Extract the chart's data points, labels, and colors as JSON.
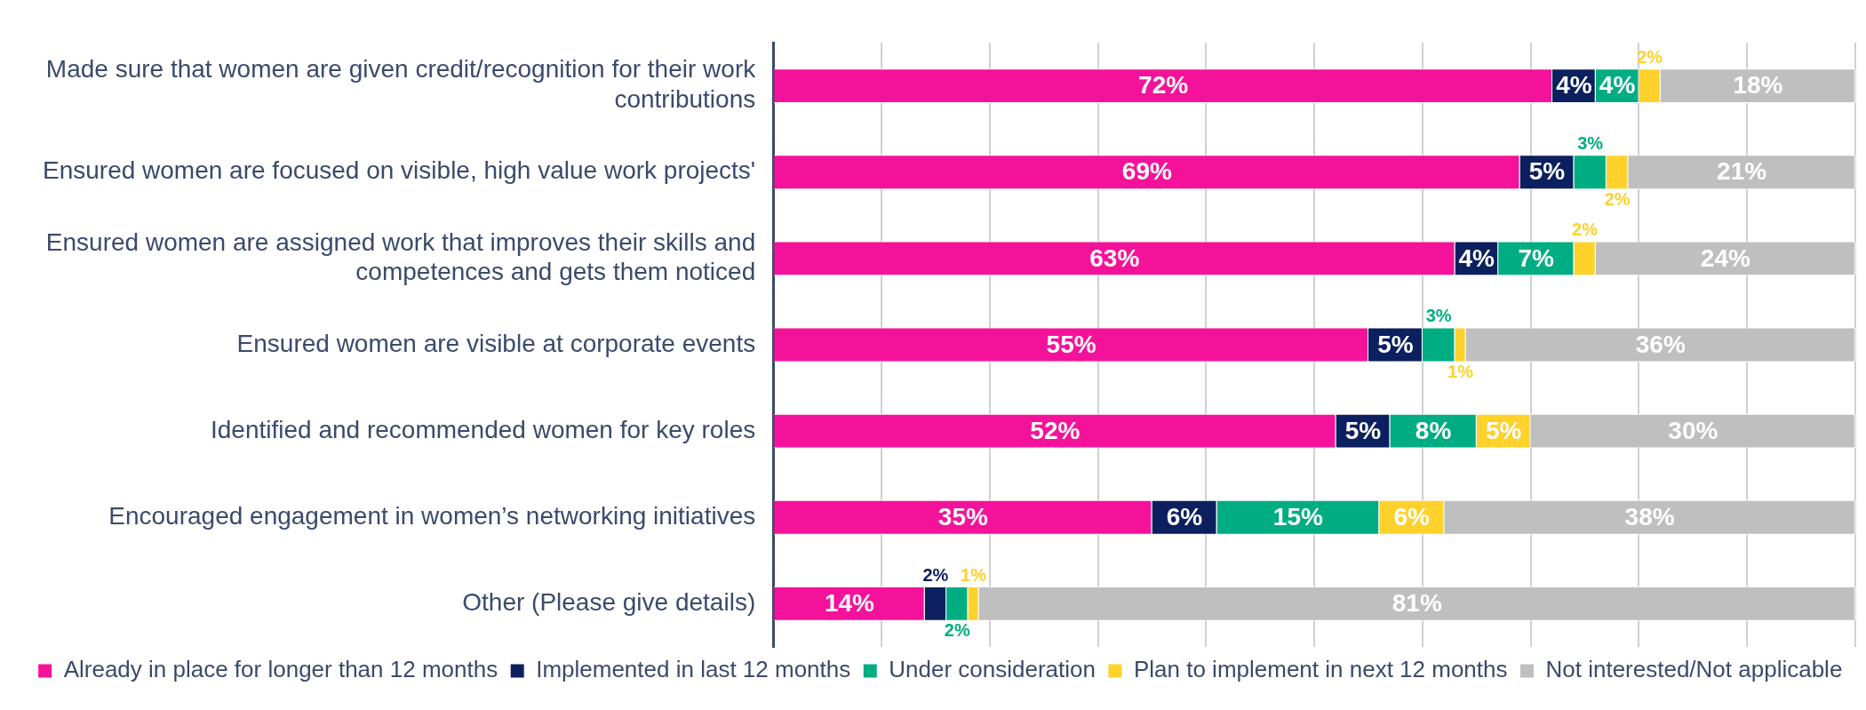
{
  "chart_data": {
    "type": "bar",
    "orientation": "horizontal",
    "stacked": true,
    "grid": "x",
    "legend": "bottom",
    "tick_labels": "y",
    "categories": [
      "Made sure that women are given credit/recognition for their work contributions",
      "Ensured women are focused on visible, high value work projects'",
      "Ensured women are assigned work that improves their skills and competences and gets them noticed",
      "Ensured women are visible at corporate events",
      "Identified and recommended women for key roles",
      "Encouraged engagement in women’s networking initiatives",
      "Other (Please give details)"
    ],
    "series": [
      {
        "name": "Already in place for longer than 12 months",
        "color": "#f5129b",
        "values": [
          72,
          69,
          63,
          55,
          52,
          35,
          14
        ],
        "value_labels": [
          "72%",
          "69%",
          "63%",
          "55%",
          "52%",
          "35%",
          "14%"
        ]
      },
      {
        "name": "Implemented in last 12 months",
        "color": "#0c1f5e",
        "values": [
          4,
          5,
          4,
          5,
          5,
          6,
          2
        ],
        "value_labels": [
          "4%",
          "5%",
          "4%",
          "5%",
          "5%",
          "6%",
          "2%"
        ]
      },
      {
        "name": "Under consideration",
        "color": "#00ad82",
        "values": [
          4,
          3,
          7,
          3,
          8,
          15,
          2
        ],
        "value_labels": [
          "4%",
          "3%",
          "7%",
          "3%",
          "8%",
          "15%",
          "2%"
        ]
      },
      {
        "name": "Plan to implement in next 12 months",
        "color": "#ffd12b",
        "values": [
          2,
          2,
          2,
          1,
          5,
          6,
          1
        ],
        "value_labels": [
          "2%",
          "2%",
          "2%",
          "1%",
          "5%",
          "6%",
          "1%"
        ]
      },
      {
        "name": "Not interested/Not applicable",
        "color": "#bfbfbf",
        "values": [
          18,
          21,
          24,
          36,
          30,
          38,
          81
        ],
        "value_labels": [
          "18%",
          "21%",
          "24%",
          "36%",
          "30%",
          "38%",
          "81%"
        ]
      }
    ]
  }
}
